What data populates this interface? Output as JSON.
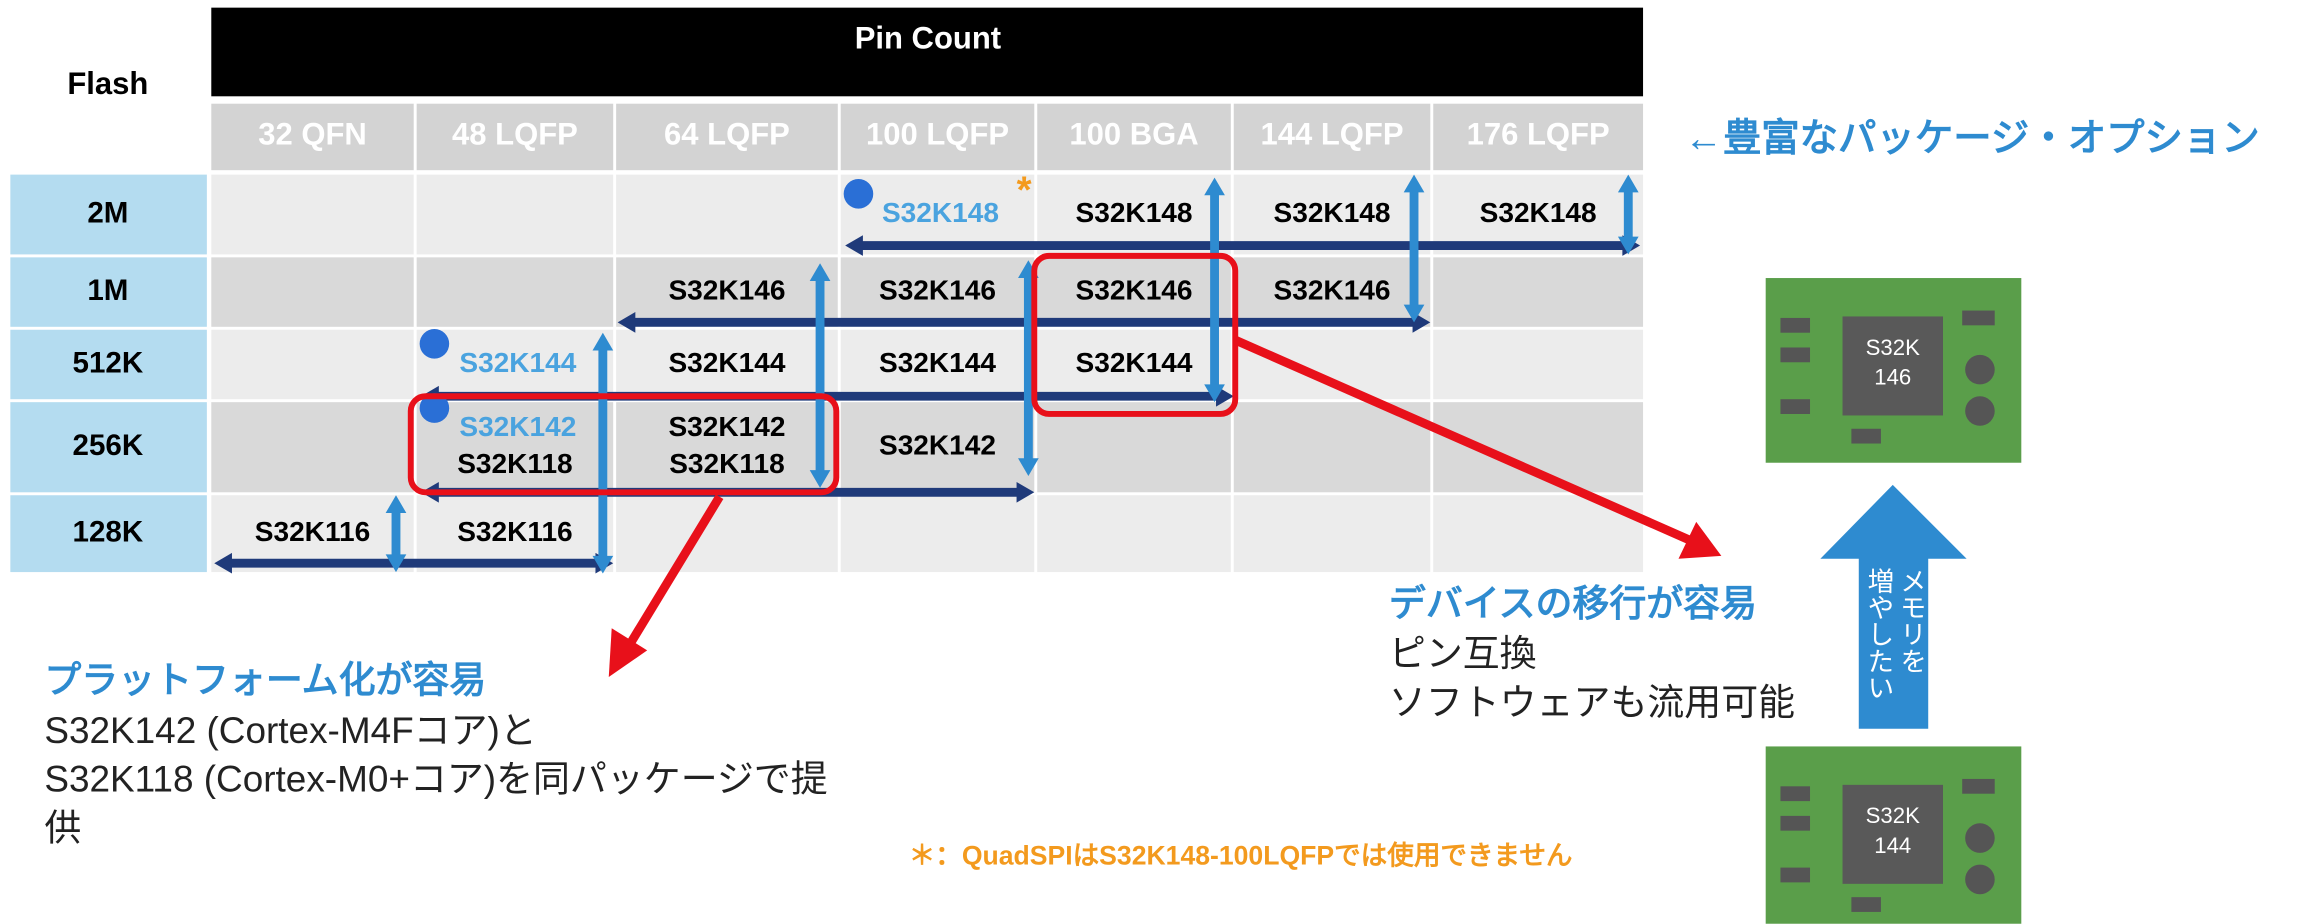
{
  "header": {
    "flash": "Flash",
    "pin_count": "Pin Count"
  },
  "columns": [
    "32 QFN",
    "48 LQFP",
    "64 LQFP",
    "100 LQFP",
    "100 BGA",
    "144 LQFP",
    "176 LQFP"
  ],
  "rows": [
    {
      "flash": "2M",
      "cells": [
        null,
        null,
        null,
        [
          {
            "text": "S32K148",
            "new": true
          }
        ],
        [
          {
            "text": "S32K148"
          }
        ],
        [
          {
            "text": "S32K148"
          }
        ],
        [
          {
            "text": "S32K148"
          }
        ]
      ]
    },
    {
      "flash": "1M",
      "cells": [
        null,
        null,
        [
          {
            "text": "S32K146"
          }
        ],
        [
          {
            "text": "S32K146"
          }
        ],
        [
          {
            "text": "S32K146"
          }
        ],
        [
          {
            "text": "S32K146"
          }
        ],
        null
      ]
    },
    {
      "flash": "512K",
      "cells": [
        null,
        [
          {
            "text": "S32K144",
            "new": true
          }
        ],
        [
          {
            "text": "S32K144"
          }
        ],
        [
          {
            "text": "S32K144"
          }
        ],
        [
          {
            "text": "S32K144"
          }
        ],
        null,
        null
      ]
    },
    {
      "flash": "256K",
      "cells": [
        null,
        [
          {
            "text": "S32K142",
            "new": true
          },
          {
            "text": "S32K118"
          }
        ],
        [
          {
            "text": "S32K142"
          },
          {
            "text": "S32K118"
          }
        ],
        [
          {
            "text": "S32K142"
          }
        ],
        null,
        null,
        null
      ]
    },
    {
      "flash": "128K",
      "cells": [
        [
          {
            "text": "S32K116"
          }
        ],
        [
          {
            "text": "S32K116"
          }
        ],
        null,
        null,
        null,
        null,
        null
      ]
    }
  ],
  "note_marker": "*",
  "tagline": "←豊富なパッケージ・オプション",
  "callouts": {
    "migration": {
      "title": "デバイスの移行が容易",
      "lines": [
        "ピン互換",
        "ソフトウェアも流用可能"
      ]
    },
    "platform": {
      "title": "プラットフォーム化が容易",
      "lines": [
        "S32K142 (Cortex-M4Fコア)と",
        "S32K118 (Cortex-M0+コア)を同パッケージで提",
        "供"
      ]
    }
  },
  "boards": [
    {
      "chip": [
        "S32K",
        "146"
      ]
    },
    {
      "chip": [
        "S32K",
        "144"
      ]
    }
  ],
  "upgrade_label": [
    "メモリを",
    "増やしたい"
  ],
  "footnote": "＊：QuadSPIはS32K148-100LQFPでは使用できません"
}
